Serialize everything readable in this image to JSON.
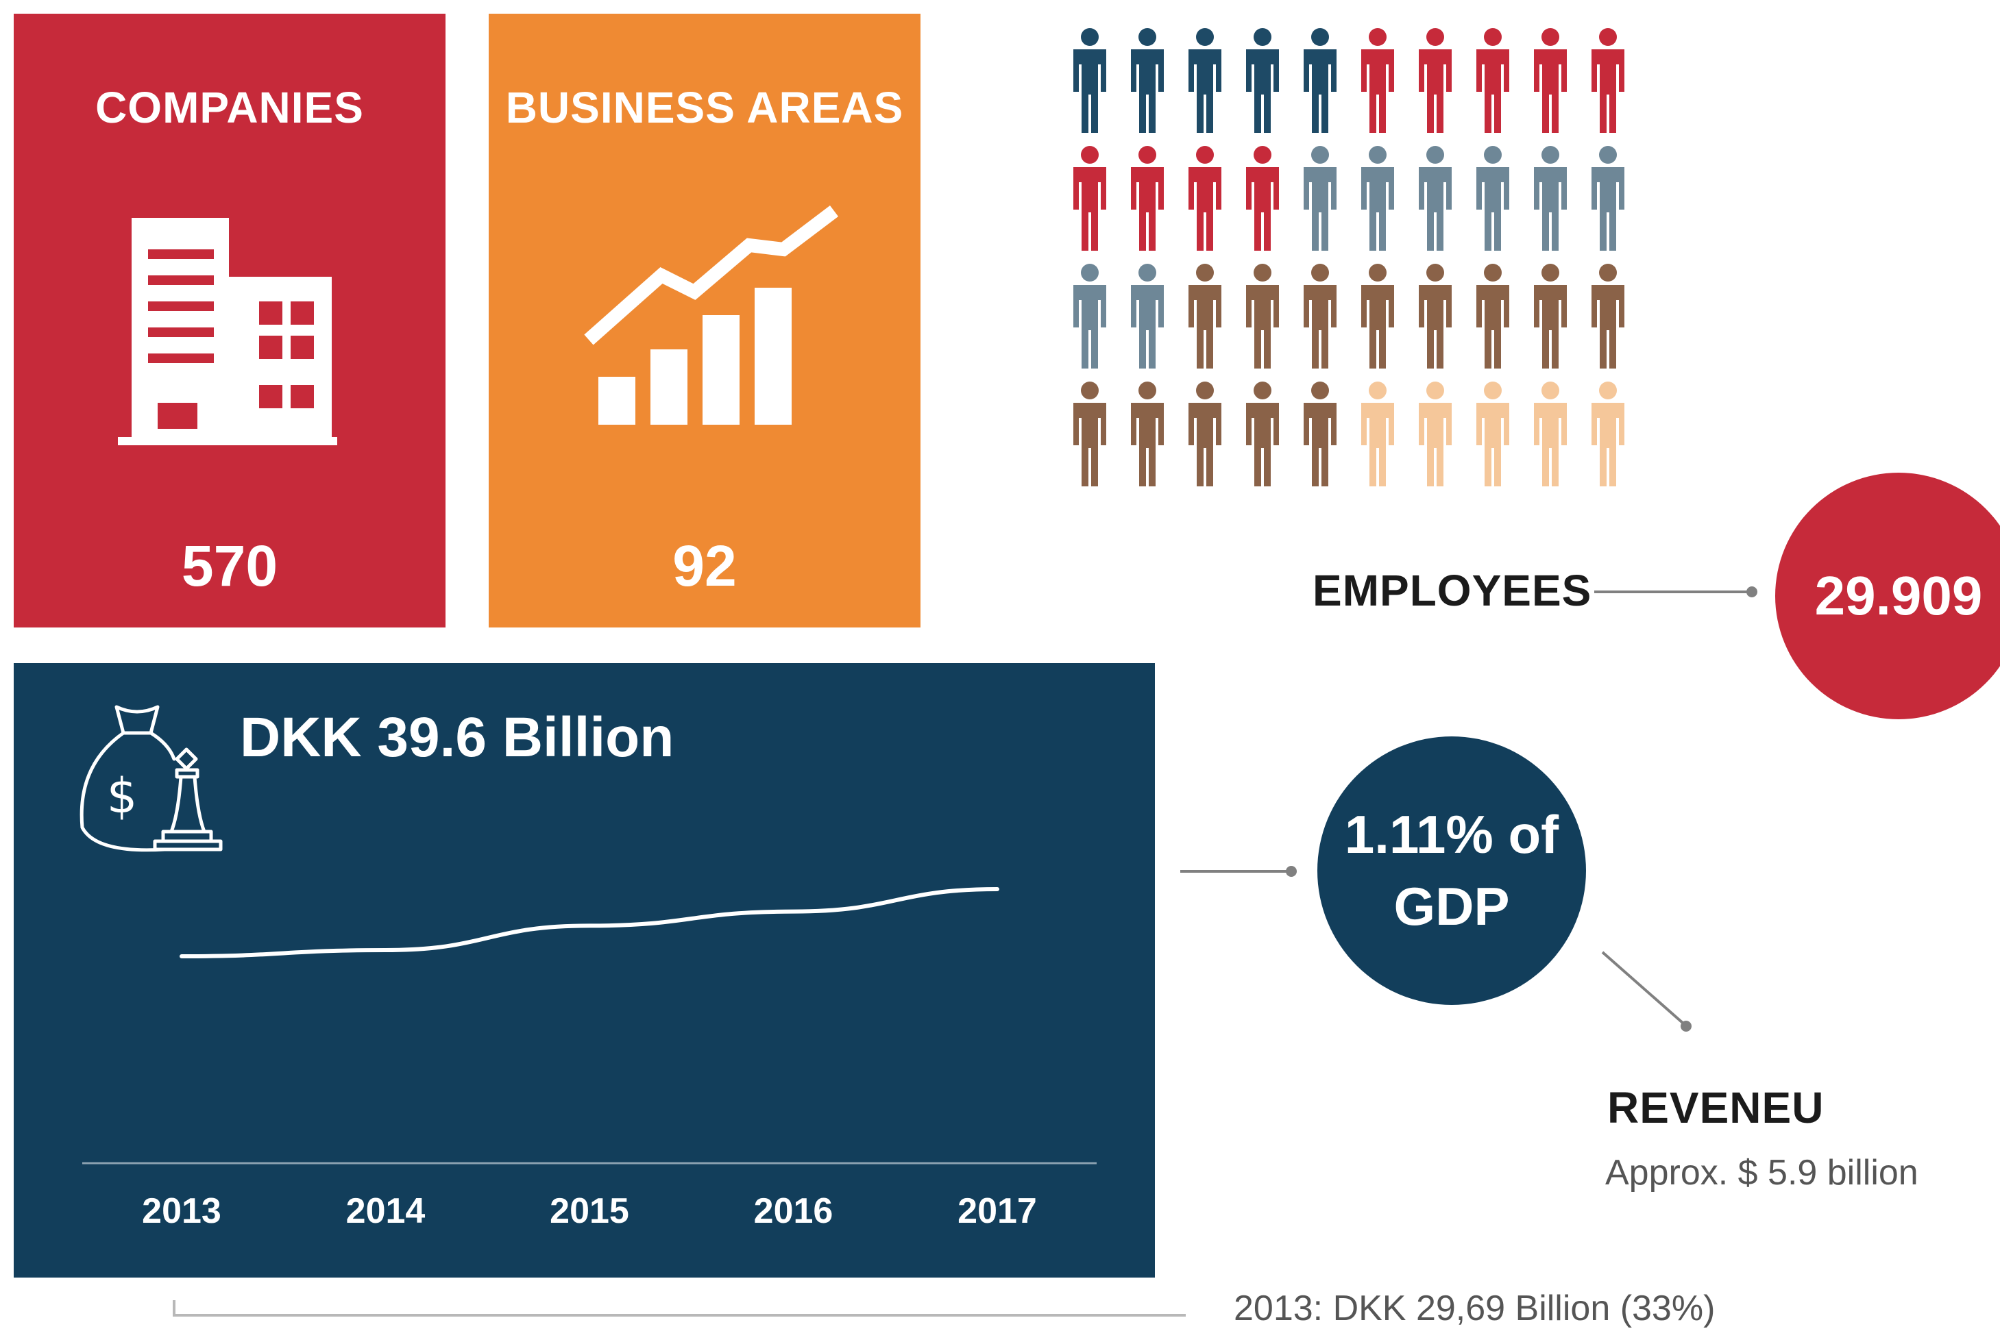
{
  "companies": {
    "title": "COMPANIES",
    "value": "570",
    "color": "#c62a3a",
    "icon": "building-icon"
  },
  "business_areas": {
    "title": "BUSINESS AREAS",
    "value": "92",
    "color": "#ef8a33",
    "icon": "growth-chart-icon"
  },
  "employees": {
    "label": "EMPLOYEES",
    "value": "29.909",
    "icon": "people-icon",
    "people_rows": [
      [
        "#1e4a66",
        "#1e4a66",
        "#1e4a66",
        "#1e4a66",
        "#1e4a66",
        "#c62a3a",
        "#c62a3a",
        "#c62a3a",
        "#c62a3a",
        "#c62a3a"
      ],
      [
        "#c62a3a",
        "#c62a3a",
        "#c62a3a",
        "#c62a3a",
        "#6e8797",
        "#6e8797",
        "#6e8797",
        "#6e8797",
        "#6e8797",
        "#6e8797"
      ],
      [
        "#6e8797",
        "#6e8797",
        "#8a6248",
        "#8a6248",
        "#8a6248",
        "#8a6248",
        "#8a6248",
        "#8a6248",
        "#8a6248",
        "#8a6248"
      ],
      [
        "#8a6248",
        "#8a6248",
        "#8a6248",
        "#8a6248",
        "#8a6248",
        "#f5c79a",
        "#f5c79a",
        "#f5c79a",
        "#f5c79a",
        "#f5c79a"
      ]
    ]
  },
  "revenue_panel": {
    "title": "DKK 39.6 Billion",
    "icon": "money-bag-chess-icon",
    "color": "#123e5b"
  },
  "chart_data": {
    "type": "line",
    "categories": [
      "2013",
      "2014",
      "2015",
      "2016",
      "2017"
    ],
    "series": [
      {
        "values": [
          29.69,
          30.6,
          34.2,
          36.3,
          39.6
        ]
      }
    ],
    "ylim": [
      0,
      45
    ],
    "grid": false
  },
  "gdp": {
    "line1": "1.11% of",
    "line2": "GDP"
  },
  "reveneu": {
    "title": "REVENEU",
    "subtitle": "Approx. $ 5.9 billion"
  },
  "note": "2013: DKK 29,69 Billion (33%)"
}
